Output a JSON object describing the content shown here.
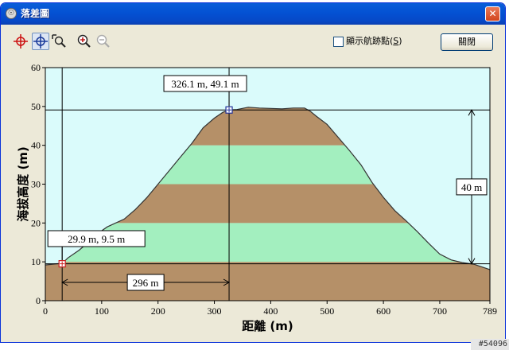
{
  "window": {
    "title": "落差圖",
    "close_glyph": "✕",
    "icon_glyph": "☉"
  },
  "toolbar": {
    "tools": [
      {
        "name": "crosshair-red-icon",
        "color": "#cc1111"
      },
      {
        "name": "crosshair-blue-icon",
        "color": "#1a3a9a",
        "active": true
      },
      {
        "name": "zoom-select-icon"
      },
      {
        "name": "zoom-in-icon"
      },
      {
        "name": "zoom-out-icon",
        "disabled": true
      }
    ],
    "show_track_points_label": "顯示航跡點(",
    "show_track_points_accel": "S",
    "show_track_points_close": ")",
    "show_track_points_checked": false,
    "close_button_label": "關閉"
  },
  "chart_data": {
    "type": "area",
    "xlabel": "距離 (m)",
    "ylabel": "海拔高度 (m)",
    "xlim": [
      0,
      789
    ],
    "ylim": [
      0,
      60
    ],
    "x_ticks": [
      "0",
      "100",
      "200",
      "300",
      "400",
      "500",
      "600",
      "700",
      "789"
    ],
    "x_tick_values": [
      0,
      100,
      200,
      300,
      400,
      500,
      600,
      700,
      789
    ],
    "y_ticks": [
      "0",
      "10",
      "20",
      "30",
      "40",
      "50",
      "60"
    ],
    "y_tick_values": [
      0,
      10,
      20,
      30,
      40,
      50,
      60
    ],
    "band_colors": [
      "#b59068",
      "#a3efbf"
    ],
    "sky_color": "#dafbfb",
    "profile": [
      [
        0,
        9.2
      ],
      [
        20,
        9.5
      ],
      [
        30,
        9.6
      ],
      [
        40,
        11
      ],
      [
        60,
        13
      ],
      [
        80,
        15.5
      ],
      [
        100,
        18
      ],
      [
        110,
        19
      ],
      [
        140,
        21
      ],
      [
        160,
        23.5
      ],
      [
        180,
        26.5
      ],
      [
        200,
        30
      ],
      [
        220,
        33.5
      ],
      [
        240,
        37
      ],
      [
        260,
        40.5
      ],
      [
        280,
        44.5
      ],
      [
        300,
        47
      ],
      [
        315,
        48.5
      ],
      [
        326.1,
        49.1
      ],
      [
        340,
        49.2
      ],
      [
        360,
        49.8
      ],
      [
        380,
        49.6
      ],
      [
        400,
        49.5
      ],
      [
        420,
        49.4
      ],
      [
        440,
        49.6
      ],
      [
        460,
        49.6
      ],
      [
        470,
        48.8
      ],
      [
        480,
        47.6
      ],
      [
        500,
        45.4
      ],
      [
        520,
        42
      ],
      [
        540,
        38.6
      ],
      [
        560,
        35
      ],
      [
        580,
        30.4
      ],
      [
        600,
        26.6
      ],
      [
        620,
        23.2
      ],
      [
        640,
        20.6
      ],
      [
        660,
        17.8
      ],
      [
        680,
        14.8
      ],
      [
        700,
        12
      ],
      [
        720,
        10.5
      ],
      [
        740,
        9.8
      ],
      [
        760,
        9.4
      ],
      [
        789,
        8
      ]
    ],
    "markers": [
      {
        "x": 29.9,
        "y": 9.5,
        "label": "29.9 m, 9.5 m",
        "color": "#cc2222"
      },
      {
        "x": 326.1,
        "y": 49.1,
        "label": "326.1 m, 49.1 m",
        "color": "#223399"
      }
    ],
    "horizontal_distance": {
      "value": 296,
      "label": "296 m"
    },
    "vertical_difference": {
      "value": 40,
      "label": "40 m"
    }
  },
  "watermark": "#54096"
}
